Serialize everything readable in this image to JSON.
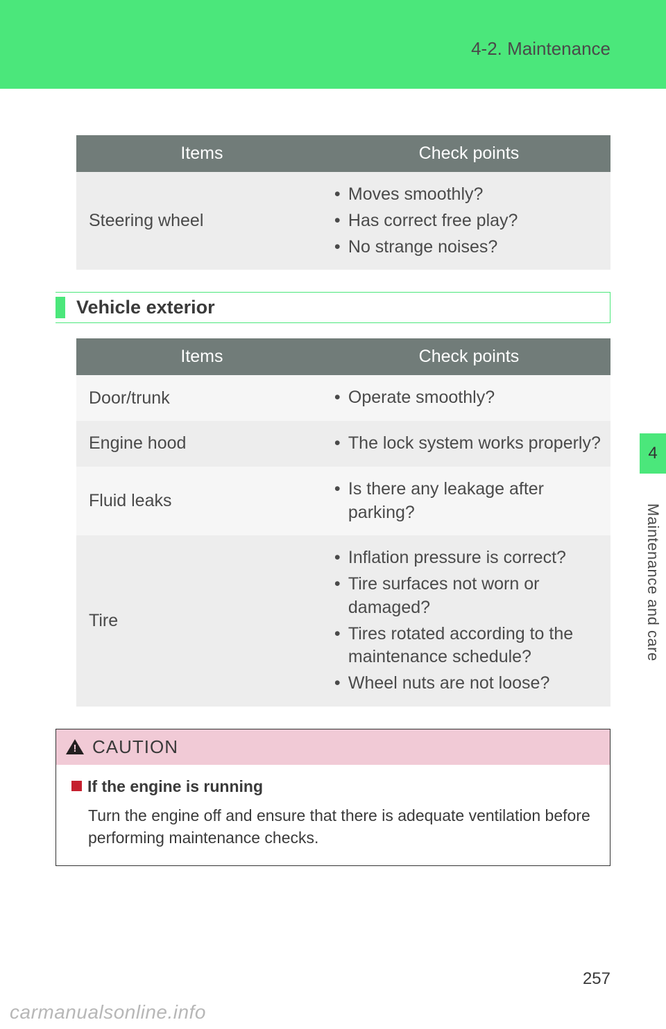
{
  "header": {
    "title": "4-2. Maintenance"
  },
  "table1": {
    "type": "table",
    "header_bg": "#717c79",
    "header_fg": "#ffffff",
    "row_bg_a": "#ededed",
    "row_bg_b": "#f6f6f6",
    "columns": [
      "Items",
      "Check points"
    ],
    "rows": [
      {
        "item": "Steering wheel",
        "checks": [
          "Moves smoothly?",
          "Has correct free play?",
          "No strange noises?"
        ]
      }
    ]
  },
  "section": {
    "title": "Vehicle exterior",
    "accent": "#4be77b"
  },
  "table2": {
    "type": "table",
    "header_bg": "#717c79",
    "header_fg": "#ffffff",
    "row_bg_a": "#ededed",
    "row_bg_b": "#f6f6f6",
    "columns": [
      "Items",
      "Check points"
    ],
    "rows": [
      {
        "item": "Door/trunk",
        "checks": [
          "Operate smoothly?"
        ]
      },
      {
        "item": "Engine hood",
        "checks": [
          "The lock system works properly?"
        ]
      },
      {
        "item": "Fluid leaks",
        "checks": [
          "Is there any leakage after parking?"
        ]
      },
      {
        "item": "Tire",
        "checks": [
          "Inflation pressure is correct?",
          "Tire surfaces not worn or damaged?",
          "Tires rotated according to the maintenance schedule?",
          "Wheel nuts are not loose?"
        ]
      }
    ]
  },
  "caution": {
    "bg": "#f1cad6",
    "icon_color": "#231f20",
    "bullet_color": "#c5202e",
    "title": "CAUTION",
    "subheading": "If the engine is running",
    "body": "Turn the engine off and ensure that there is adequate ventilation before performing maintenance checks."
  },
  "side": {
    "tab_bg": "#4be77b",
    "tab_number": "4",
    "label": "Maintenance and care"
  },
  "page_number": "257",
  "watermark": "carmanualsonline.info",
  "colors": {
    "page_bg": "#ffffff",
    "text": "#3a3a3a"
  }
}
